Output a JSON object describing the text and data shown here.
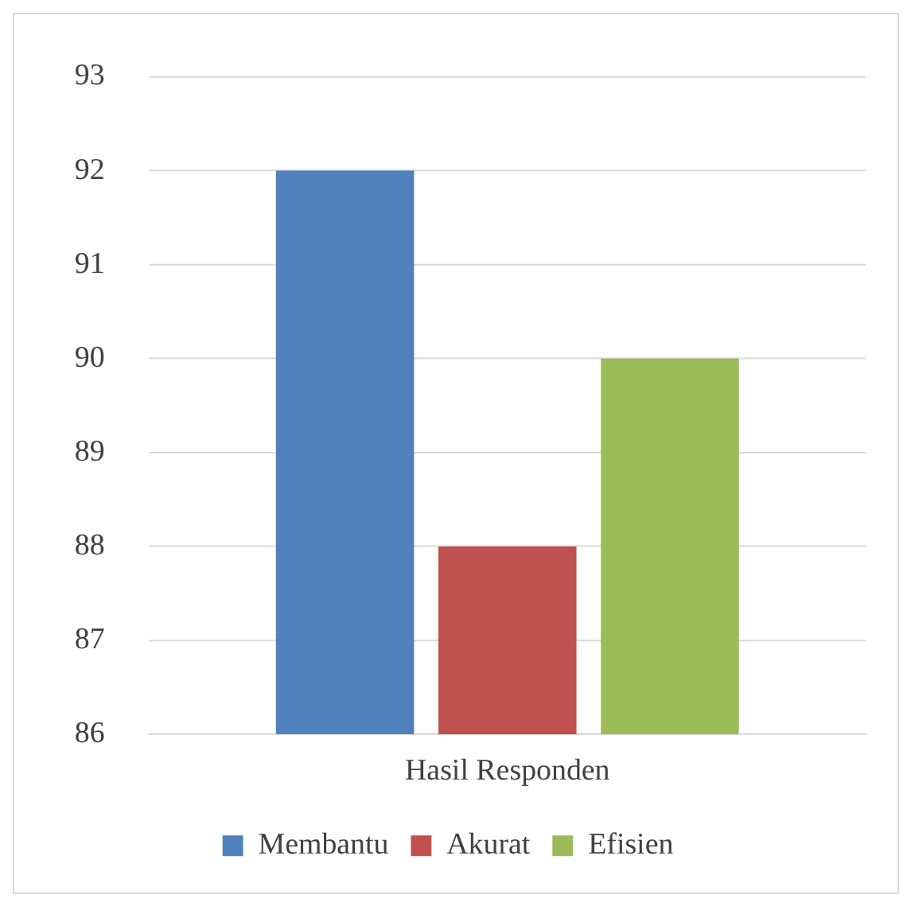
{
  "chart_data": {
    "type": "bar",
    "categories": [
      "Hasil Responden"
    ],
    "series": [
      {
        "name": "Membantu",
        "color": "#4f81bd",
        "values": [
          92
        ]
      },
      {
        "name": "Akurat",
        "color": "#c0504d",
        "values": [
          88
        ]
      },
      {
        "name": "Efisien",
        "color": "#9bbb59",
        "values": [
          90
        ]
      }
    ],
    "ylim": [
      86,
      93
    ],
    "yticks": [
      86,
      87,
      88,
      89,
      90,
      91,
      92,
      93
    ],
    "grid": "y",
    "legend": "bottom"
  }
}
